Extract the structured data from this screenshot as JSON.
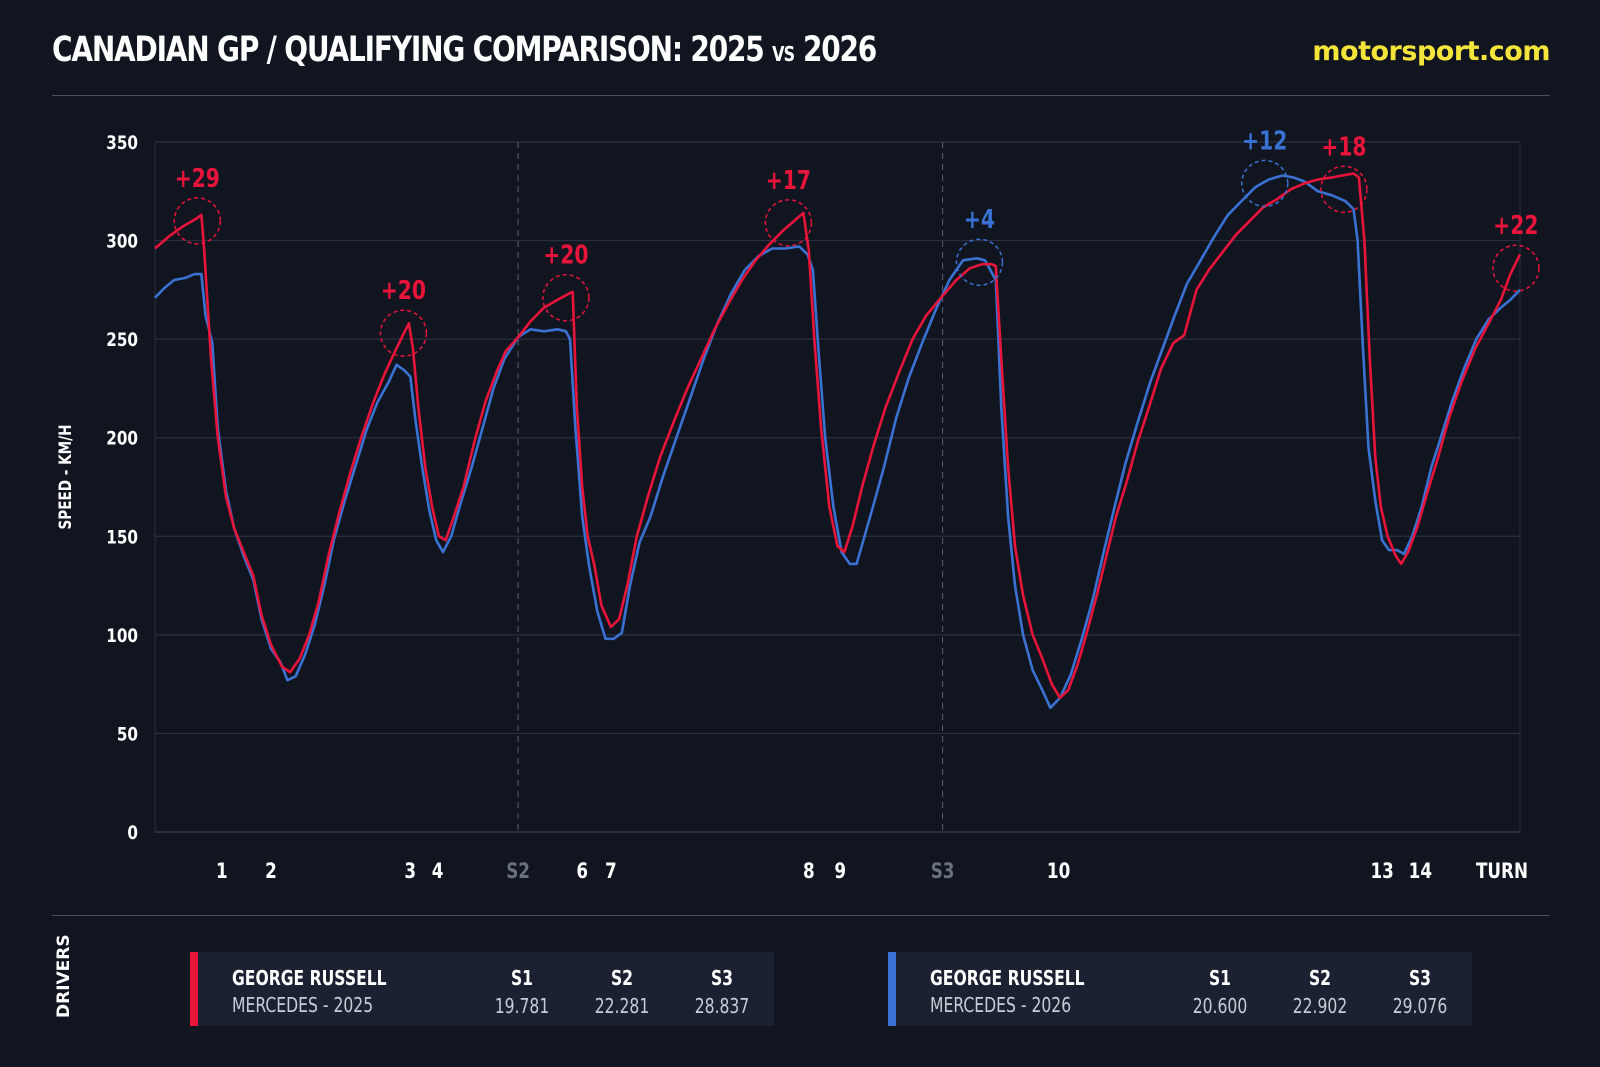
{
  "header": {
    "title_main": "CANADIAN GP / QUALIFYING COMPARISON: 2025 ",
    "title_vs": "VS",
    "title_end": " 2026",
    "brand": "motorsport.com"
  },
  "footer": {
    "label": "DRIVERS",
    "drivers": [
      {
        "name": "GEORGE RUSSELL",
        "team": "MERCEDES - 2025",
        "color": "#e8143a",
        "sectors": [
          {
            "label": "S1",
            "time": "19.781"
          },
          {
            "label": "S2",
            "time": "22.281"
          },
          {
            "label": "S3",
            "time": "28.837"
          }
        ]
      },
      {
        "name": "GEORGE RUSSELL",
        "team": "MERCEDES - 2026",
        "color": "#3a72d4",
        "sectors": [
          {
            "label": "S1",
            "time": "20.600"
          },
          {
            "label": "S2",
            "time": "22.902"
          },
          {
            "label": "S3",
            "time": "29.076"
          }
        ]
      }
    ]
  },
  "chart_data": {
    "type": "line",
    "title": "CANADIAN GP / QUALIFYING COMPARISON: 2025 VS 2026",
    "ylabel": "SPEED - KM/H",
    "xlabel": "TURN",
    "ylim": [
      0,
      350
    ],
    "yticks": [
      0,
      50,
      100,
      150,
      200,
      250,
      300,
      350
    ],
    "xlim": [
      0,
      100
    ],
    "grid": true,
    "turn_labels": [
      {
        "label": "1",
        "x": 4.9
      },
      {
        "label": "2",
        "x": 8.5
      },
      {
        "label": "3",
        "x": 18.7
      },
      {
        "label": "4",
        "x": 20.7
      },
      {
        "label": "S2",
        "x": 26.6,
        "sector": true
      },
      {
        "label": "6",
        "x": 31.3
      },
      {
        "label": "7",
        "x": 33.4
      },
      {
        "label": "8",
        "x": 47.9
      },
      {
        "label": "9",
        "x": 50.2
      },
      {
        "label": "S3",
        "x": 57.7,
        "sector": true
      },
      {
        "label": "10",
        "x": 66.2
      },
      {
        "label": "13",
        "x": 89.9
      },
      {
        "label": "14",
        "x": 92.7
      },
      {
        "label": "TURN",
        "x": 100,
        "axis": true
      }
    ],
    "sector_lines": [
      26.6,
      57.7
    ],
    "series": [
      {
        "name": "MERCEDES - 2025",
        "color": "#e8143a",
        "points": [
          [
            0,
            296
          ],
          [
            1,
            302
          ],
          [
            2,
            307
          ],
          [
            3,
            311
          ],
          [
            3.4,
            313
          ],
          [
            3.6,
            296
          ],
          [
            4.1,
            240
          ],
          [
            4.6,
            200
          ],
          [
            5.2,
            170
          ],
          [
            5.8,
            154
          ],
          [
            6.5,
            142
          ],
          [
            7.2,
            130
          ],
          [
            7.8,
            110
          ],
          [
            8.5,
            95
          ],
          [
            9.3,
            84
          ],
          [
            9.9,
            81
          ],
          [
            10.6,
            88
          ],
          [
            11.3,
            100
          ],
          [
            12,
            117
          ],
          [
            12.7,
            140
          ],
          [
            13.5,
            162
          ],
          [
            14.3,
            182
          ],
          [
            15.1,
            200
          ],
          [
            16,
            218
          ],
          [
            16.8,
            232
          ],
          [
            17.6,
            244
          ],
          [
            18.3,
            254
          ],
          [
            18.6,
            258
          ],
          [
            18.9,
            245
          ],
          [
            19.3,
            215
          ],
          [
            19.8,
            185
          ],
          [
            20.3,
            165
          ],
          [
            20.8,
            150
          ],
          [
            21.3,
            148
          ],
          [
            21.9,
            160
          ],
          [
            22.6,
            175
          ],
          [
            23.4,
            198
          ],
          [
            24.2,
            218
          ],
          [
            25,
            233
          ],
          [
            25.7,
            244
          ],
          [
            26.6,
            251
          ],
          [
            27.5,
            259
          ],
          [
            28.5,
            266
          ],
          [
            29.5,
            270
          ],
          [
            30.3,
            273
          ],
          [
            30.6,
            274
          ],
          [
            30.9,
            216
          ],
          [
            31.3,
            175
          ],
          [
            31.7,
            150
          ],
          [
            32.2,
            135
          ],
          [
            32.7,
            115
          ],
          [
            33.4,
            104
          ],
          [
            34,
            108
          ],
          [
            34.6,
            125
          ],
          [
            35.3,
            150
          ],
          [
            36.1,
            170
          ],
          [
            37,
            190
          ],
          [
            38,
            208
          ],
          [
            39,
            225
          ],
          [
            40,
            240
          ],
          [
            41,
            255
          ],
          [
            42,
            268
          ],
          [
            43,
            280
          ],
          [
            44,
            290
          ],
          [
            45,
            298
          ],
          [
            46,
            305
          ],
          [
            47,
            311
          ],
          [
            47.5,
            314
          ],
          [
            47.9,
            295
          ],
          [
            48.3,
            250
          ],
          [
            48.8,
            205
          ],
          [
            49.4,
            165
          ],
          [
            50,
            145
          ],
          [
            50.5,
            142
          ],
          [
            51.1,
            155
          ],
          [
            51.8,
            175
          ],
          [
            52.6,
            195
          ],
          [
            53.5,
            215
          ],
          [
            54.5,
            233
          ],
          [
            55.5,
            250
          ],
          [
            56.5,
            262
          ],
          [
            57.7,
            272
          ],
          [
            58.7,
            280
          ],
          [
            59.7,
            286
          ],
          [
            60.6,
            288
          ],
          [
            61.3,
            288
          ],
          [
            61.6,
            287
          ],
          [
            62,
            240
          ],
          [
            62.5,
            185
          ],
          [
            63,
            145
          ],
          [
            63.6,
            120
          ],
          [
            64.3,
            100
          ],
          [
            65,
            88
          ],
          [
            65.7,
            75
          ],
          [
            66.3,
            68
          ],
          [
            66.9,
            72
          ],
          [
            67.6,
            85
          ],
          [
            68.3,
            102
          ],
          [
            69,
            120
          ],
          [
            69.7,
            140
          ],
          [
            70.4,
            160
          ],
          [
            71.2,
            178
          ],
          [
            72,
            198
          ],
          [
            72.8,
            215
          ],
          [
            73.7,
            235
          ],
          [
            74.6,
            248
          ],
          [
            75.4,
            252
          ],
          [
            76.3,
            275
          ],
          [
            77.2,
            285
          ],
          [
            78.2,
            294
          ],
          [
            79.2,
            303
          ],
          [
            80.2,
            310
          ],
          [
            81.2,
            317
          ],
          [
            82.2,
            321
          ],
          [
            83.2,
            326
          ],
          [
            84.2,
            329
          ],
          [
            85.2,
            331
          ],
          [
            86.2,
            332
          ],
          [
            87,
            333
          ],
          [
            87.8,
            334
          ],
          [
            88.2,
            332
          ],
          [
            88.6,
            300
          ],
          [
            89,
            240
          ],
          [
            89.4,
            190
          ],
          [
            89.8,
            165
          ],
          [
            90.3,
            150
          ],
          [
            90.9,
            140
          ],
          [
            91.3,
            136
          ],
          [
            91.8,
            142
          ],
          [
            92.5,
            155
          ],
          [
            93.2,
            172
          ],
          [
            94,
            190
          ],
          [
            94.8,
            210
          ],
          [
            95.7,
            228
          ],
          [
            96.7,
            245
          ],
          [
            97.7,
            258
          ],
          [
            98.6,
            270
          ],
          [
            99.3,
            283
          ],
          [
            100,
            293
          ]
        ],
        "annotations": [
          {
            "label": "+29",
            "x": 3.1,
            "y": 310
          },
          {
            "label": "+20",
            "x": 18.2,
            "y": 253
          },
          {
            "label": "+20",
            "x": 30.1,
            "y": 271
          },
          {
            "label": "+17",
            "x": 46.4,
            "y": 309
          },
          {
            "label": "+18",
            "x": 87.1,
            "y": 326
          },
          {
            "label": "+22",
            "x": 99.7,
            "y": 286
          }
        ]
      },
      {
        "name": "MERCEDES - 2026",
        "color": "#3a72d4",
        "points": [
          [
            0,
            271
          ],
          [
            0.7,
            276
          ],
          [
            1.4,
            280
          ],
          [
            2.2,
            281
          ],
          [
            2.9,
            283
          ],
          [
            3.4,
            283
          ],
          [
            3.7,
            262
          ],
          [
            4.2,
            248
          ],
          [
            4.6,
            205
          ],
          [
            5.2,
            173
          ],
          [
            5.8,
            154
          ],
          [
            6.5,
            140
          ],
          [
            7.2,
            128
          ],
          [
            7.8,
            108
          ],
          [
            8.5,
            93
          ],
          [
            9.2,
            86
          ],
          [
            9.7,
            77
          ],
          [
            10.3,
            79
          ],
          [
            11,
            90
          ],
          [
            11.7,
            105
          ],
          [
            12.4,
            125
          ],
          [
            13.1,
            148
          ],
          [
            13.9,
            168
          ],
          [
            14.7,
            186
          ],
          [
            15.5,
            204
          ],
          [
            16.3,
            218
          ],
          [
            17.1,
            228
          ],
          [
            17.7,
            237
          ],
          [
            18.3,
            234
          ],
          [
            18.7,
            231
          ],
          [
            19.1,
            208
          ],
          [
            19.6,
            184
          ],
          [
            20.1,
            163
          ],
          [
            20.6,
            148
          ],
          [
            21.1,
            142
          ],
          [
            21.7,
            150
          ],
          [
            22.4,
            167
          ],
          [
            23.2,
            185
          ],
          [
            24,
            205
          ],
          [
            24.8,
            225
          ],
          [
            25.6,
            240
          ],
          [
            26.6,
            251
          ],
          [
            27.5,
            255
          ],
          [
            28.5,
            254
          ],
          [
            29.5,
            255
          ],
          [
            30.1,
            254
          ],
          [
            30.4,
            250
          ],
          [
            30.8,
            205
          ],
          [
            31.3,
            160
          ],
          [
            31.8,
            135
          ],
          [
            32.4,
            112
          ],
          [
            33,
            98
          ],
          [
            33.6,
            98
          ],
          [
            34.2,
            101
          ],
          [
            34.8,
            125
          ],
          [
            35.5,
            147
          ],
          [
            36.3,
            160
          ],
          [
            37.2,
            180
          ],
          [
            38.2,
            200
          ],
          [
            39.2,
            220
          ],
          [
            40.2,
            240
          ],
          [
            41.2,
            258
          ],
          [
            42.2,
            273
          ],
          [
            43.2,
            285
          ],
          [
            44.2,
            292
          ],
          [
            45.2,
            296
          ],
          [
            46.2,
            296
          ],
          [
            47.2,
            297
          ],
          [
            47.8,
            293
          ],
          [
            48.2,
            285
          ],
          [
            48.6,
            245
          ],
          [
            49.1,
            200
          ],
          [
            49.7,
            165
          ],
          [
            50.3,
            142
          ],
          [
            50.9,
            136
          ],
          [
            51.4,
            136
          ],
          [
            51.9,
            148
          ],
          [
            52.6,
            165
          ],
          [
            53.4,
            185
          ],
          [
            54.3,
            210
          ],
          [
            55.2,
            230
          ],
          [
            56.2,
            248
          ],
          [
            57.2,
            265
          ],
          [
            58.2,
            280
          ],
          [
            59.2,
            290
          ],
          [
            60.2,
            291
          ],
          [
            60.8,
            290
          ],
          [
            61.2,
            285
          ],
          [
            61.6,
            280
          ],
          [
            62,
            215
          ],
          [
            62.5,
            160
          ],
          [
            63,
            125
          ],
          [
            63.6,
            100
          ],
          [
            64.3,
            82
          ],
          [
            65,
            72
          ],
          [
            65.6,
            63
          ],
          [
            66.3,
            68
          ],
          [
            67.1,
            80
          ],
          [
            67.9,
            98
          ],
          [
            68.7,
            118
          ],
          [
            69.5,
            142
          ],
          [
            70.3,
            165
          ],
          [
            71.1,
            187
          ],
          [
            72,
            208
          ],
          [
            72.9,
            228
          ],
          [
            73.8,
            245
          ],
          [
            74.7,
            262
          ],
          [
            75.6,
            278
          ],
          [
            76.6,
            290
          ],
          [
            77.6,
            302
          ],
          [
            78.6,
            313
          ],
          [
            79.6,
            320
          ],
          [
            80.6,
            327
          ],
          [
            81.6,
            331
          ],
          [
            82.6,
            333
          ],
          [
            83.4,
            332
          ],
          [
            84.2,
            330
          ],
          [
            85.2,
            325
          ],
          [
            86.2,
            323
          ],
          [
            87.2,
            320
          ],
          [
            87.8,
            316
          ],
          [
            88.1,
            300
          ],
          [
            88.5,
            245
          ],
          [
            88.9,
            195
          ],
          [
            89.4,
            168
          ],
          [
            89.9,
            148
          ],
          [
            90.4,
            143
          ],
          [
            91,
            143
          ],
          [
            91.5,
            141
          ],
          [
            92.1,
            150
          ],
          [
            92.8,
            165
          ],
          [
            93.5,
            185
          ],
          [
            94.2,
            200
          ],
          [
            95,
            218
          ],
          [
            95.9,
            235
          ],
          [
            96.8,
            250
          ],
          [
            97.7,
            260
          ],
          [
            98.6,
            266
          ],
          [
            99.3,
            270
          ],
          [
            100,
            275
          ]
        ],
        "annotations": [
          {
            "label": "+4",
            "x": 60.4,
            "y": 289
          },
          {
            "label": "+12",
            "x": 81.3,
            "y": 329
          }
        ]
      }
    ]
  }
}
